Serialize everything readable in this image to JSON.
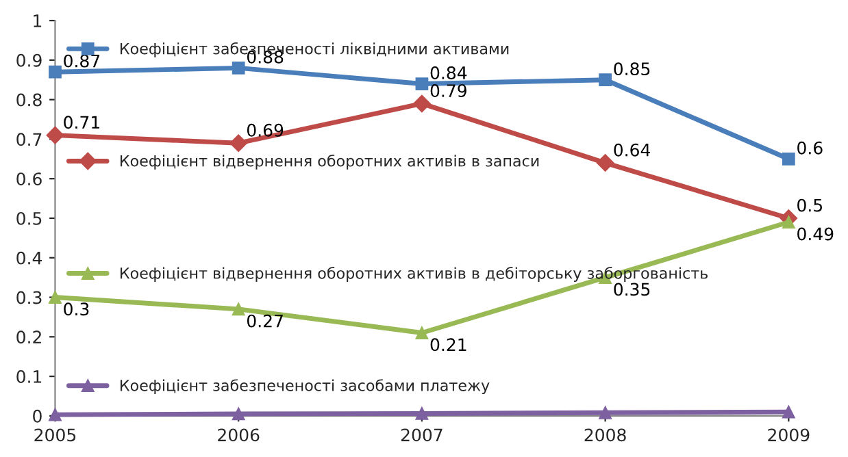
{
  "chart_data": {
    "type": "line",
    "x": [
      2005,
      2006,
      2007,
      2008,
      2009
    ],
    "series": [
      {
        "name": "Коефіцієнт забезпеченості ліквідними активами",
        "color": "#4a7ebb",
        "marker": "square",
        "values": [
          0.87,
          0.88,
          0.84,
          0.85,
          0.65
        ],
        "value_labels": [
          "0.87",
          "0.88",
          "0.84",
          "0.85",
          "0.6"
        ]
      },
      {
        "name": "Коефіцієнт відвернення оборотних активів в запаси",
        "color": "#be4b48",
        "marker": "diamond",
        "values": [
          0.71,
          0.69,
          0.79,
          0.64,
          0.5
        ],
        "value_labels": [
          "0.71",
          "0.69",
          "0.79",
          "0.64",
          "0.5"
        ]
      },
      {
        "name": "Коефіцієнт відвернення оборотних активів в дебіторську заборгованість",
        "color": "#98b954",
        "marker": "triangle",
        "values": [
          0.3,
          0.27,
          0.21,
          0.35,
          0.49
        ],
        "value_labels": [
          "0.3",
          "0.27",
          "0.21",
          "0.35",
          "0.49"
        ]
      },
      {
        "name": "Коефіцієнт забезпеченості засобами платежу",
        "color": "#7d60a0",
        "marker": "triangle",
        "values": [
          0.003,
          0.005,
          0.006,
          0.008,
          0.01
        ]
      }
    ],
    "xlim": [
      2005,
      2009
    ],
    "xticks": [
      2005,
      2006,
      2007,
      2008,
      2009
    ],
    "ylim": [
      0,
      1
    ],
    "yticks": [
      0,
      0.1,
      0.2,
      0.3,
      0.4,
      0.5,
      0.6,
      0.7,
      0.8,
      0.9,
      1
    ],
    "grid": false,
    "legend": "left"
  }
}
